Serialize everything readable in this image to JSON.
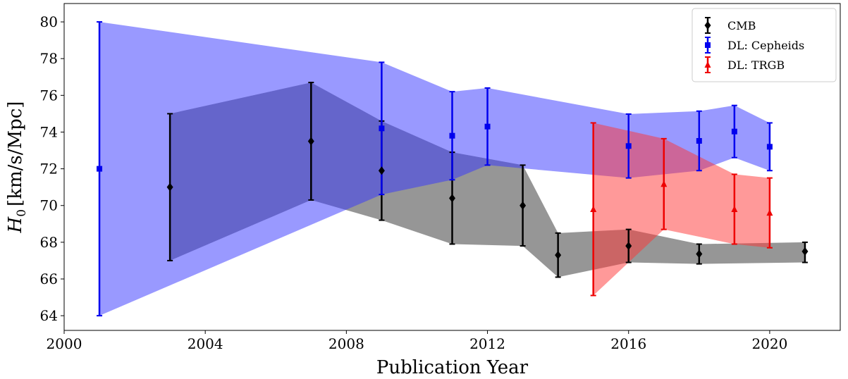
{
  "chart_data": {
    "type": "scatter",
    "xlabel": "Publication Year",
    "ylabel_main": "H",
    "ylabel_sub": "0",
    "ylabel_units": "[km/s/Mpc]",
    "xlim": [
      2000,
      2022
    ],
    "ylim": [
      63.2,
      81
    ],
    "xticks": [
      2000,
      2004,
      2008,
      2012,
      2016,
      2020
    ],
    "yticks": [
      64,
      66,
      68,
      70,
      72,
      74,
      76,
      78,
      80
    ],
    "grid": false,
    "legend_position": "top-right",
    "series": [
      {
        "name": "CMB",
        "color": "#000000",
        "band_color": "#555555",
        "band_opacity": 0.62,
        "marker": "diamond",
        "points": [
          {
            "x": 2003,
            "y": 71.0,
            "lo": 67.0,
            "hi": 75.0
          },
          {
            "x": 2007,
            "y": 73.5,
            "lo": 70.3,
            "hi": 76.7
          },
          {
            "x": 2009,
            "y": 71.9,
            "lo": 69.2,
            "hi": 74.6
          },
          {
            "x": 2011,
            "y": 70.4,
            "lo": 67.9,
            "hi": 72.9
          },
          {
            "x": 2013,
            "y": 70.0,
            "lo": 67.8,
            "hi": 72.2
          },
          {
            "x": 2014,
            "y": 67.3,
            "lo": 66.1,
            "hi": 68.5
          },
          {
            "x": 2016,
            "y": 67.8,
            "lo": 66.9,
            "hi": 68.7
          },
          {
            "x": 2018,
            "y": 67.36,
            "lo": 66.82,
            "hi": 67.9
          },
          {
            "x": 2021,
            "y": 67.5,
            "lo": 66.9,
            "hi": 68.0
          }
        ]
      },
      {
        "name": "DL: Cepheids",
        "color": "#0000ee",
        "band_color": "#3333ff",
        "band_opacity": 0.5,
        "marker": "square",
        "points": [
          {
            "x": 2001,
            "y": 72.0,
            "lo": 64.0,
            "hi": 80.0
          },
          {
            "x": 2009,
            "y": 74.2,
            "lo": 70.6,
            "hi": 77.8
          },
          {
            "x": 2011,
            "y": 73.8,
            "lo": 71.4,
            "hi": 76.2
          },
          {
            "x": 2012,
            "y": 74.3,
            "lo": 72.2,
            "hi": 76.4
          },
          {
            "x": 2016,
            "y": 73.24,
            "lo": 71.5,
            "hi": 74.98
          },
          {
            "x": 2018,
            "y": 73.52,
            "lo": 71.9,
            "hi": 75.14
          },
          {
            "x": 2019,
            "y": 74.03,
            "lo": 72.61,
            "hi": 75.45
          },
          {
            "x": 2020,
            "y": 73.2,
            "lo": 71.9,
            "hi": 74.5
          }
        ]
      },
      {
        "name": "DL: TRGB",
        "color": "#ee0000",
        "band_color": "#ff3333",
        "band_opacity": 0.5,
        "marker": "triangle",
        "points": [
          {
            "x": 2015,
            "y": 69.8,
            "lo": 65.1,
            "hi": 74.5
          },
          {
            "x": 2017,
            "y": 71.17,
            "lo": 68.7,
            "hi": 73.64
          },
          {
            "x": 2019,
            "y": 69.8,
            "lo": 67.9,
            "hi": 71.7
          },
          {
            "x": 2020,
            "y": 69.6,
            "lo": 67.7,
            "hi": 71.5
          }
        ]
      }
    ]
  }
}
